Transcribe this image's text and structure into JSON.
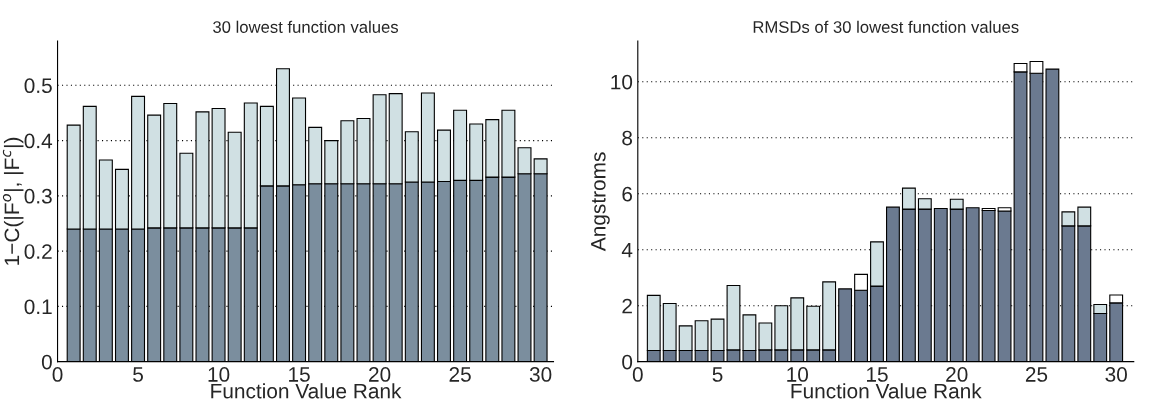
{
  "chart_data": [
    {
      "type": "bar",
      "stacked": true,
      "title": "30 lowest function values",
      "xlabel": "Function Value Rank",
      "ylabel": "1−C(|F$^{o}$|, |F$^{c}$|)",
      "x": [
        1,
        2,
        3,
        4,
        5,
        6,
        7,
        8,
        9,
        10,
        11,
        12,
        13,
        14,
        15,
        16,
        17,
        18,
        19,
        20,
        21,
        22,
        23,
        24,
        25,
        26,
        27,
        28,
        29,
        30
      ],
      "series": [
        {
          "color": "#7b8e9e",
          "values": [
            0.24,
            0.24,
            0.24,
            0.24,
            0.24,
            0.242,
            0.242,
            0.242,
            0.242,
            0.242,
            0.242,
            0.242,
            0.318,
            0.318,
            0.32,
            0.322,
            0.322,
            0.322,
            0.322,
            0.322,
            0.322,
            0.325,
            0.325,
            0.326,
            0.328,
            0.328,
            0.334,
            0.334,
            0.34,
            0.34
          ]
        },
        {
          "color": "#d0e0e3",
          "values": [
            0.188,
            0.222,
            0.125,
            0.108,
            0.24,
            0.204,
            0.225,
            0.135,
            0.21,
            0.216,
            0.173,
            0.226,
            0.144,
            0.212,
            0.157,
            0.102,
            0.078,
            0.114,
            0.118,
            0.161,
            0.163,
            0.091,
            0.161,
            0.093,
            0.127,
            0.102,
            0.104,
            0.121,
            0.047,
            0.027
          ]
        }
      ],
      "xlim": [
        0,
        30.8
      ],
      "xticks": [
        0,
        5,
        10,
        15,
        20,
        25,
        30
      ],
      "ylim": [
        0,
        0.58
      ],
      "yticks": [
        0,
        0.1,
        0.2,
        0.3,
        0.4,
        0.5
      ],
      "grid": "y"
    },
    {
      "type": "bar",
      "stacked": true,
      "title": "RMSDs of 30 lowest function values",
      "xlabel": "Function Value Rank",
      "ylabel": "Angstroms",
      "x": [
        1,
        2,
        3,
        4,
        5,
        6,
        7,
        8,
        9,
        10,
        11,
        12,
        13,
        14,
        15,
        16,
        17,
        18,
        19,
        20,
        21,
        22,
        23,
        24,
        25,
        26,
        27,
        28,
        29,
        30
      ],
      "series": [
        {
          "color": "#6b7a90",
          "values": [
            0.4,
            0.4,
            0.4,
            0.4,
            0.4,
            0.42,
            0.4,
            0.42,
            0.42,
            0.42,
            0.42,
            0.42,
            2.6,
            2.55,
            2.7,
            5.52,
            5.45,
            5.45,
            5.47,
            5.45,
            5.5,
            5.4,
            5.38,
            10.35,
            10.3,
            10.45,
            4.85,
            4.85,
            1.72,
            2.1
          ]
        },
        {
          "color": "#d0e0e3",
          "values": [
            1.97,
            1.68,
            0.88,
            1.06,
            1.12,
            2.3,
            1.27,
            0.96,
            1.58,
            1.86,
            1.56,
            2.43,
            null,
            null,
            1.58,
            null,
            0.75,
            0.37,
            null,
            0.35,
            null,
            null,
            null,
            null,
            null,
            null,
            0.5,
            0.67,
            0.32,
            null
          ]
        },
        {
          "color": "#ffffff",
          "values": [
            null,
            null,
            null,
            null,
            null,
            null,
            null,
            null,
            null,
            null,
            null,
            null,
            null,
            0.57,
            null,
            null,
            null,
            null,
            null,
            null,
            null,
            0.07,
            0.12,
            0.3,
            0.42,
            null,
            null,
            null,
            null,
            0.28
          ]
        }
      ],
      "xlim": [
        0,
        31.1
      ],
      "xticks": [
        0,
        5,
        10,
        15,
        20,
        25,
        30
      ],
      "ylim": [
        0,
        11.45
      ],
      "yticks": [
        0,
        2,
        4,
        6,
        8,
        10
      ],
      "grid": "y"
    }
  ]
}
